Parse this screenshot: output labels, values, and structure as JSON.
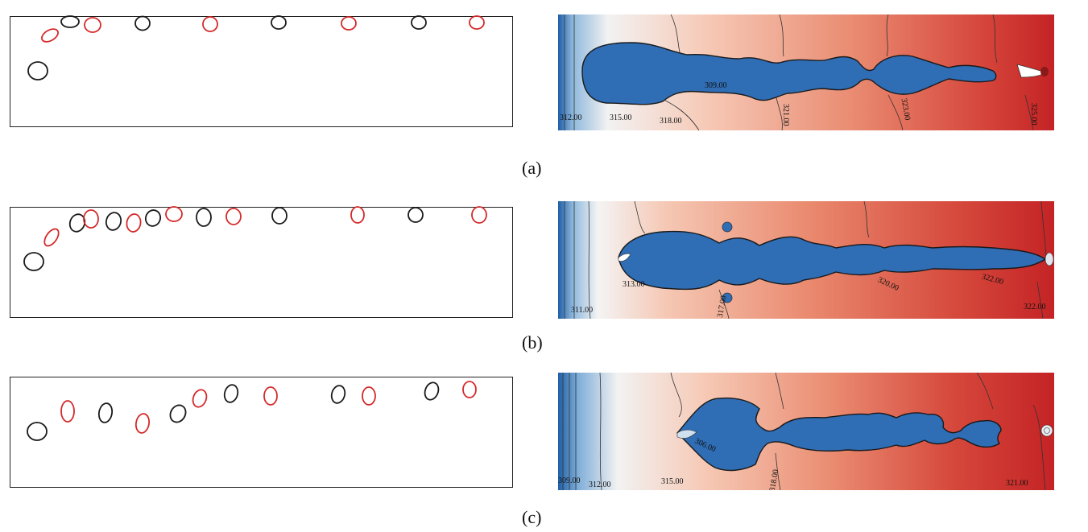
{
  "figure": {
    "rows": [
      {
        "label": "(a)",
        "isotherms": [
          "312.00",
          "315.00",
          "318.00",
          "309.00",
          "321.00",
          "323.00",
          "325.00"
        ]
      },
      {
        "label": "(b)",
        "isotherms": [
          "311.00",
          "313.00",
          "317.00",
          "320.00",
          "322.00",
          "322.00"
        ]
      },
      {
        "label": "(c)",
        "isotherms": [
          "309.00",
          "312.00",
          "315.00",
          "306.00",
          "318.00",
          "321.00"
        ]
      }
    ],
    "colors": {
      "box_border": "#222222",
      "bubble_black": "#1a1a1a",
      "bubble_red": "#d42a2a",
      "vapor_blue": "#2f6db5",
      "cold_wall": "#1f5fa8",
      "hot_end": "#c62a2a"
    }
  }
}
